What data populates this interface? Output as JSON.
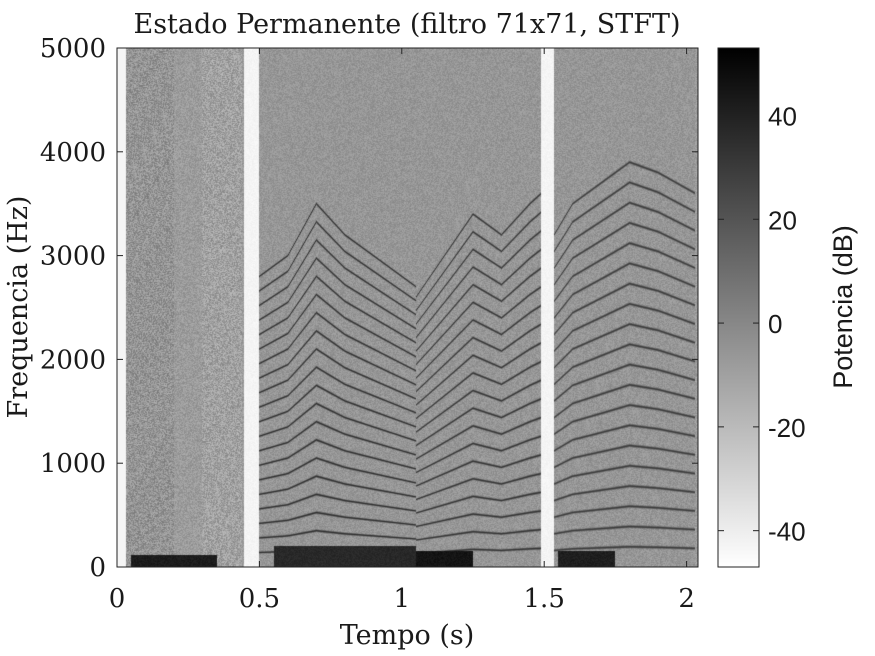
{
  "chart_data": {
    "type": "heatmap",
    "title": "Estado Permanente (filtro 71x71, STFT)",
    "xlabel": "Tempo (s)",
    "ylabel": "Frequencia (Hz)",
    "xlim": [
      0,
      2.04
    ],
    "ylim": [
      0,
      5000
    ],
    "x_ticks": [
      0,
      0.5,
      1,
      1.5,
      2
    ],
    "x_tick_labels": [
      "0",
      "0.5",
      "1",
      "1.5",
      "2"
    ],
    "y_ticks": [
      0,
      1000,
      2000,
      3000,
      4000,
      5000
    ],
    "y_tick_labels": [
      "0",
      "1000",
      "2000",
      "3000",
      "4000",
      "5000"
    ],
    "colorbar": {
      "label": "Potencia (dB)",
      "range": [
        -47,
        53
      ],
      "ticks": [
        -40,
        -20,
        0,
        20,
        40
      ],
      "tick_labels": [
        "-40",
        "-20",
        "0",
        "20",
        "40"
      ],
      "colormap": "gray-reversed",
      "low_color": "#ffffff",
      "high_color": "#000000"
    },
    "grid": false,
    "background_db": -8,
    "silent_intervals_s": [
      [
        0.445,
        0.5
      ],
      [
        1.49,
        1.535
      ]
    ],
    "voiced_segments": [
      {
        "t_start": 0.5,
        "t_end": 1.05,
        "harmonics": 20,
        "f0_curve_t": [
          0.5,
          0.6,
          0.7,
          0.8,
          0.9,
          1.0,
          1.05
        ],
        "f0_curve_hz": [
          140,
          150,
          175,
          160,
          150,
          140,
          135
        ],
        "power_db": 35
      },
      {
        "t_start": 1.05,
        "t_end": 1.49,
        "harmonics": 20,
        "f0_curve_t": [
          1.05,
          1.15,
          1.25,
          1.35,
          1.45,
          1.49
        ],
        "f0_curve_hz": [
          130,
          150,
          170,
          160,
          175,
          180
        ],
        "power_db": 33
      },
      {
        "t_start": 1.535,
        "t_end": 2.03,
        "harmonics": 20,
        "f0_curve_t": [
          1.535,
          1.6,
          1.7,
          1.8,
          1.9,
          2.03
        ],
        "f0_curve_hz": [
          160,
          175,
          185,
          195,
          190,
          180
        ],
        "power_db": 30
      }
    ],
    "low_frequency_bands": [
      {
        "t_start": 0.05,
        "t_end": 0.35,
        "f_max_hz": 120,
        "power_db": 45
      },
      {
        "t_start": 0.55,
        "t_end": 1.05,
        "f_max_hz": 200,
        "power_db": 40
      },
      {
        "t_start": 1.05,
        "t_end": 1.25,
        "f_max_hz": 150,
        "power_db": 48
      },
      {
        "t_start": 1.55,
        "t_end": 1.75,
        "f_max_hz": 150,
        "power_db": 44
      }
    ],
    "noise_segments": [
      {
        "t_start": 0.03,
        "t_end": 0.2,
        "power_db": -5
      },
      {
        "t_start": 0.3,
        "t_end": 0.44,
        "power_db": -10
      }
    ]
  }
}
